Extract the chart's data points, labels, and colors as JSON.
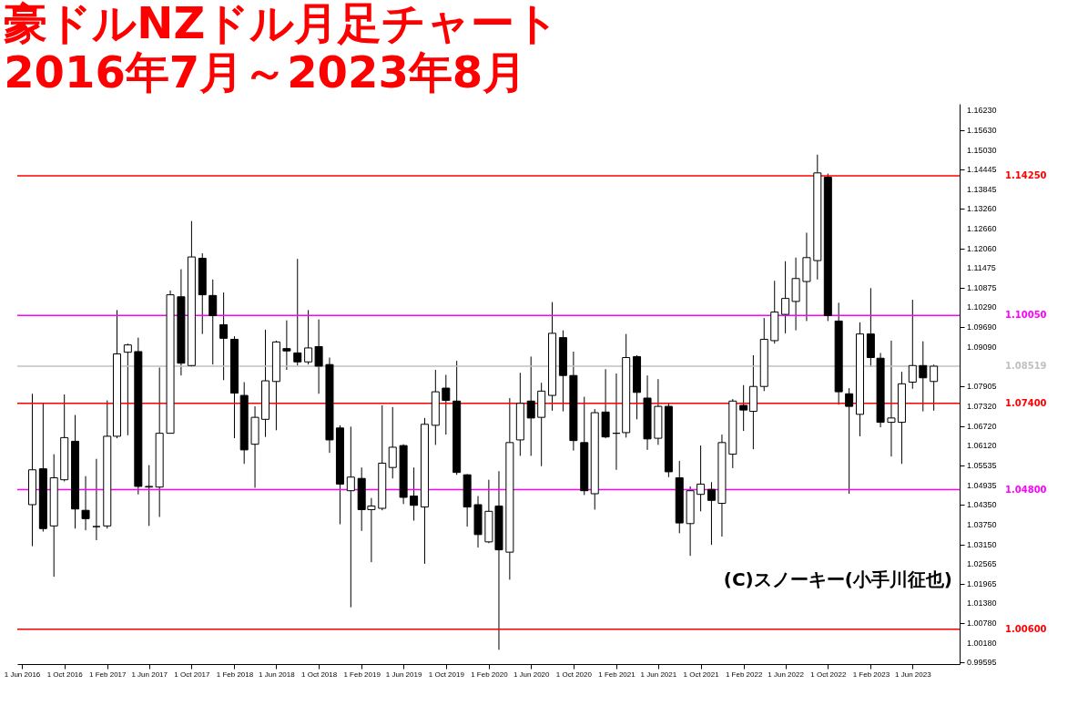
{
  "chart_data": {
    "type": "candlestick",
    "title": "豪ドルNZドル月足チャート",
    "subtitle": "2016年7月～2023年8月",
    "x": [
      "2016-07",
      "2016-08",
      "2016-09",
      "2016-10",
      "2016-11",
      "2016-12",
      "2017-01",
      "2017-02",
      "2017-03",
      "2017-04",
      "2017-05",
      "2017-06",
      "2017-07",
      "2017-08",
      "2017-09",
      "2017-10",
      "2017-11",
      "2017-12",
      "2018-01",
      "2018-02",
      "2018-03",
      "2018-04",
      "2018-05",
      "2018-06",
      "2018-07",
      "2018-08",
      "2018-09",
      "2018-10",
      "2018-11",
      "2018-12",
      "2019-01",
      "2019-02",
      "2019-03",
      "2019-04",
      "2019-05",
      "2019-06",
      "2019-07",
      "2019-08",
      "2019-09",
      "2019-10",
      "2019-11",
      "2019-12",
      "2020-01",
      "2020-02",
      "2020-03",
      "2020-04",
      "2020-05",
      "2020-06",
      "2020-07",
      "2020-08",
      "2020-09",
      "2020-10",
      "2020-11",
      "2020-12",
      "2021-01",
      "2021-02",
      "2021-03",
      "2021-04",
      "2021-05",
      "2021-06",
      "2021-07",
      "2021-08",
      "2021-09",
      "2021-10",
      "2021-11",
      "2021-12",
      "2022-01",
      "2022-02",
      "2022-03",
      "2022-04",
      "2022-05",
      "2022-06",
      "2022-07",
      "2022-08",
      "2022-09",
      "2022-10",
      "2022-11",
      "2022-12",
      "2023-01",
      "2023-02",
      "2023-03",
      "2023-04",
      "2023-05",
      "2023-06",
      "2023-07",
      "2023-08"
    ],
    "ohlc": [
      [
        1.0435,
        1.0769,
        1.031,
        1.054
      ],
      [
        1.0543,
        1.0742,
        1.0354,
        1.0363
      ],
      [
        1.0371,
        1.0587,
        1.0218,
        1.0516
      ],
      [
        1.051,
        1.0767,
        1.0505,
        1.0637
      ],
      [
        1.0626,
        1.0705,
        1.0363,
        1.0422
      ],
      [
        1.0418,
        1.0521,
        1.0358,
        1.0393
      ],
      [
        1.0369,
        1.0573,
        1.0328,
        1.0369
      ],
      [
        1.0371,
        1.0749,
        1.0363,
        1.0641
      ],
      [
        1.0641,
        1.1021,
        1.0635,
        1.0889
      ],
      [
        1.0894,
        1.092,
        1.0644,
        1.0916
      ],
      [
        1.0896,
        1.0938,
        1.0466,
        1.049
      ],
      [
        1.0488,
        1.0554,
        1.0371,
        1.049
      ],
      [
        1.0488,
        1.0848,
        1.0398,
        1.065
      ],
      [
        1.065,
        1.108,
        1.065,
        1.1067
      ],
      [
        1.1061,
        1.1144,
        1.0824,
        1.0861
      ],
      [
        1.0854,
        1.1289,
        1.085,
        1.1181
      ],
      [
        1.1177,
        1.1192,
        1.0949,
        1.1067
      ],
      [
        1.1065,
        1.1113,
        1.0857,
        1.1004
      ],
      [
        1.0977,
        1.1074,
        1.081,
        1.0936
      ],
      [
        1.0933,
        1.0942,
        1.0635,
        1.0771
      ],
      [
        1.0764,
        1.0804,
        1.0558,
        1.06
      ],
      [
        1.0617,
        1.0731,
        1.0486,
        1.0698
      ],
      [
        1.0692,
        1.0962,
        1.0639,
        1.0808
      ],
      [
        1.0806,
        1.0929,
        1.0659,
        1.0925
      ],
      [
        1.0905,
        1.099,
        1.0841,
        1.0898
      ],
      [
        1.0892,
        1.1175,
        1.0854,
        1.0865
      ],
      [
        1.0865,
        1.1021,
        1.0857,
        1.0907
      ],
      [
        1.0911,
        1.0993,
        1.0769,
        1.0852
      ],
      [
        1.0857,
        1.0878,
        1.0591,
        1.063
      ],
      [
        1.0666,
        1.0674,
        1.0376,
        1.0497
      ],
      [
        1.0477,
        1.067,
        1.0126,
        1.0518
      ],
      [
        1.0514,
        1.0547,
        1.0356,
        1.042
      ],
      [
        1.042,
        1.0455,
        1.0262,
        1.0431
      ],
      [
        1.0424,
        1.0734,
        1.0418,
        1.056
      ],
      [
        1.0547,
        1.0729,
        1.0514,
        1.0608
      ],
      [
        1.0613,
        1.0617,
        1.0437,
        1.0457
      ],
      [
        1.0461,
        1.0547,
        1.0387,
        1.0433
      ],
      [
        1.0428,
        1.0696,
        1.0257,
        1.0677
      ],
      [
        1.0674,
        1.0841,
        1.0615,
        1.0775
      ],
      [
        1.0786,
        1.0826,
        1.0646,
        1.0749
      ],
      [
        1.0747,
        1.0868,
        1.0525,
        1.0532
      ],
      [
        1.0525,
        1.0527,
        1.0369,
        1.0428
      ],
      [
        1.0435,
        1.0461,
        1.0306,
        1.0345
      ],
      [
        1.0323,
        1.051,
        1.0319,
        1.0415
      ],
      [
        1.0431,
        1.0536,
        0.9998,
        1.0299
      ],
      [
        1.0292,
        1.0756,
        1.0209,
        1.0622
      ],
      [
        1.063,
        1.0832,
        1.0582,
        1.074
      ],
      [
        1.0747,
        1.0881,
        1.0582,
        1.0696
      ],
      [
        1.0698,
        1.0802,
        1.0551,
        1.0777
      ],
      [
        1.0764,
        1.1045,
        1.0718,
        1.0951
      ],
      [
        1.0938,
        1.096,
        1.0716,
        1.0824
      ],
      [
        1.0824,
        1.0896,
        1.0598,
        1.0628
      ],
      [
        1.0622,
        1.076,
        1.0464,
        1.0477
      ],
      [
        1.0468,
        1.0723,
        1.042,
        1.0712
      ],
      [
        1.0714,
        1.0843,
        1.0635,
        1.0639
      ],
      [
        1.065,
        1.083,
        1.054,
        1.065
      ],
      [
        1.0652,
        1.0949,
        1.0637,
        1.0878
      ],
      [
        1.0881,
        1.0885,
        1.0692,
        1.0773
      ],
      [
        1.0756,
        1.0824,
        1.06,
        1.0633
      ],
      [
        1.0635,
        1.0813,
        1.0615,
        1.0731
      ],
      [
        1.0731,
        1.074,
        1.0518,
        1.0534
      ],
      [
        1.0516,
        1.0567,
        1.0349,
        1.038
      ],
      [
        1.0378,
        1.049,
        1.0281,
        1.0477
      ],
      [
        1.0466,
        1.0613,
        1.0415,
        1.0497
      ],
      [
        1.0481,
        1.0503,
        1.0314,
        1.0448
      ],
      [
        1.0439,
        1.0646,
        1.0339,
        1.0622
      ],
      [
        1.0587,
        1.0753,
        1.0545,
        1.0747
      ],
      [
        1.0734,
        1.0795,
        1.0657,
        1.072
      ],
      [
        1.0716,
        1.0885,
        1.0602,
        1.0791
      ],
      [
        1.0791,
        1.0997,
        1.0777,
        1.0933
      ],
      [
        1.0929,
        1.1109,
        1.092,
        1.1015
      ],
      [
        1.1008,
        1.1168,
        1.0951,
        1.1056
      ],
      [
        1.1047,
        1.1179,
        1.096,
        1.1116
      ],
      [
        1.1107,
        1.1254,
        1.0988,
        1.1179
      ],
      [
        1.117,
        1.1489,
        1.1113,
        1.1434
      ],
      [
        1.1421,
        1.1432,
        1.0988,
        1.1004
      ],
      [
        1.0988,
        1.1043,
        1.0736,
        1.0775
      ],
      [
        1.0769,
        1.0786,
        1.0468,
        1.0731
      ],
      [
        1.0707,
        1.0984,
        1.0641,
        1.0949
      ],
      [
        1.0949,
        1.1087,
        1.085,
        1.0878
      ],
      [
        1.0876,
        1.0892,
        1.0668,
        1.0683
      ],
      [
        1.0683,
        1.0929,
        1.058,
        1.0696
      ],
      [
        1.0683,
        1.0835,
        1.0558,
        1.0799
      ],
      [
        1.0804,
        1.1052,
        1.0784,
        1.0854
      ],
      [
        1.0854,
        1.0927,
        1.0716,
        1.0817
      ],
      [
        1.0806,
        1.0857,
        1.0718,
        1.0852
      ]
    ],
    "colors": [
      "#ffffff",
      "#000000",
      "#ffffff",
      "#ffffff",
      "#000000",
      "#000000",
      "#000000",
      "#ffffff",
      "#ffffff",
      "#ffffff",
      "#000000",
      "#ffffff",
      "#ffffff",
      "#ffffff",
      "#000000",
      "#ffffff",
      "#000000",
      "#000000",
      "#000000",
      "#000000",
      "#000000",
      "#ffffff",
      "#ffffff",
      "#ffffff",
      "#000000",
      "#000000",
      "#ffffff",
      "#000000",
      "#000000",
      "#000000",
      "#ffffff",
      "#000000",
      "#ffffff",
      "#ffffff",
      "#ffffff",
      "#000000",
      "#000000",
      "#ffffff",
      "#ffffff",
      "#000000",
      "#000000",
      "#000000",
      "#000000",
      "#ffffff",
      "#000000",
      "#ffffff",
      "#ffffff",
      "#000000",
      "#ffffff",
      "#ffffff",
      "#000000",
      "#000000",
      "#000000",
      "#ffffff",
      "#000000",
      "#000000",
      "#ffffff",
      "#000000",
      "#000000",
      "#ffffff",
      "#000000",
      "#000000",
      "#ffffff",
      "#ffffff",
      "#000000",
      "#ffffff",
      "#ffffff",
      "#000000",
      "#ffffff",
      "#ffffff",
      "#ffffff",
      "#ffffff",
      "#ffffff",
      "#ffffff",
      "#ffffff",
      "#000000",
      "#000000",
      "#000000",
      "#ffffff",
      "#000000",
      "#000000",
      "#ffffff",
      "#ffffff",
      "#ffffff",
      "#000000",
      "#ffffff"
    ],
    "xlim": [
      "2016-06",
      "2023-10"
    ],
    "xticks": [
      {
        "value": "2016-06",
        "label": "1 Jun 2016"
      },
      {
        "value": "2016-10",
        "label": "1 Oct 2016"
      },
      {
        "value": "2017-02",
        "label": "1 Feb 2017"
      },
      {
        "value": "2017-06",
        "label": "1 Jun 2017"
      },
      {
        "value": "2017-10",
        "label": "1 Oct 2017"
      },
      {
        "value": "2018-02",
        "label": "1 Feb 2018"
      },
      {
        "value": "2018-06",
        "label": "1 Jun 2018"
      },
      {
        "value": "2018-10",
        "label": "1 Oct 2018"
      },
      {
        "value": "2019-02",
        "label": "1 Feb 2019"
      },
      {
        "value": "2019-06",
        "label": "1 Jun 2019"
      },
      {
        "value": "2019-10",
        "label": "1 Oct 2019"
      },
      {
        "value": "2020-02",
        "label": "1 Feb 2020"
      },
      {
        "value": "2020-06",
        "label": "1 Jun 2020"
      },
      {
        "value": "2020-10",
        "label": "1 Oct 2020"
      },
      {
        "value": "2021-02",
        "label": "1 Feb 2021"
      },
      {
        "value": "2021-06",
        "label": "1 Jun 2021"
      },
      {
        "value": "2021-10",
        "label": "1 Oct 2021"
      },
      {
        "value": "2022-02",
        "label": "1 Feb 2022"
      },
      {
        "value": "2022-06",
        "label": "1 Jun 2022"
      },
      {
        "value": "2022-10",
        "label": "1 Oct 2022"
      },
      {
        "value": "2023-02",
        "label": "1 Feb 2023"
      },
      {
        "value": "2023-06",
        "label": "1 Jun 2023"
      }
    ],
    "ylim": [
      0.9955,
      1.1642
    ],
    "yticks": [
      {
        "value": 1.1623,
        "label": "1.16230"
      },
      {
        "value": 1.1563,
        "label": "1.15630"
      },
      {
        "value": 1.1503,
        "label": "1.15030"
      },
      {
        "value": 1.14445,
        "label": "1.14445"
      },
      {
        "value": 1.13845,
        "label": "1.13845"
      },
      {
        "value": 1.1326,
        "label": "1.13260"
      },
      {
        "value": 1.1266,
        "label": "1.12660"
      },
      {
        "value": 1.1206,
        "label": "1.12060"
      },
      {
        "value": 1.11475,
        "label": "1.11475"
      },
      {
        "value": 1.10875,
        "label": "1.10875"
      },
      {
        "value": 1.1029,
        "label": "1.10290"
      },
      {
        "value": 1.0969,
        "label": "1.09690"
      },
      {
        "value": 1.0909,
        "label": "1.09090"
      },
      {
        "value": 1.07905,
        "label": "1.07905"
      },
      {
        "value": 1.0732,
        "label": "1.07320"
      },
      {
        "value": 1.0672,
        "label": "1.06720"
      },
      {
        "value": 1.0612,
        "label": "1.06120"
      },
      {
        "value": 1.05535,
        "label": "1.05535"
      },
      {
        "value": 1.04935,
        "label": "1.04935"
      },
      {
        "value": 1.0435,
        "label": "1.04350"
      },
      {
        "value": 1.0375,
        "label": "1.03750"
      },
      {
        "value": 1.0315,
        "label": "1.03150"
      },
      {
        "value": 1.02565,
        "label": "1.02565"
      },
      {
        "value": 1.01965,
        "label": "1.01965"
      },
      {
        "value": 1.0138,
        "label": "1.01380"
      },
      {
        "value": 1.0078,
        "label": "1.00780"
      },
      {
        "value": 1.0018,
        "label": "1.00180"
      },
      {
        "value": 0.99595,
        "label": "0.99595"
      }
    ],
    "ref_lines": [
      {
        "axis": "y",
        "value": 1.1425,
        "label": "1.14250",
        "color": "#ff0000"
      },
      {
        "axis": "y",
        "value": 1.1005,
        "label": "1.10050",
        "color": "#ff00ff"
      },
      {
        "axis": "y",
        "value": 1.08519,
        "label": "1.08519",
        "color": "#c0c0c0"
      },
      {
        "axis": "y",
        "value": 1.074,
        "label": "1.07400",
        "color": "#ff0000"
      },
      {
        "axis": "y",
        "value": 1.048,
        "label": "1.04800",
        "color": "#ff00ff"
      },
      {
        "axis": "y",
        "value": 1.006,
        "label": "1.00600",
        "color": "#ff0000"
      }
    ],
    "annotations": [
      "(C)スノーキー(小手川征也)"
    ],
    "grid": false
  }
}
